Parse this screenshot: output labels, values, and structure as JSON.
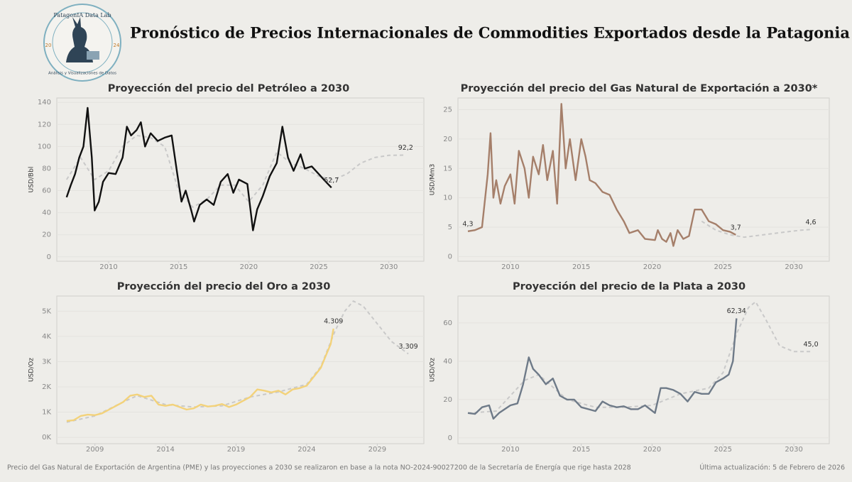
{
  "header": {
    "title": "Pronóstico de Precios Internacionales de Commodities Exportados desde la Patagonia",
    "logo_title": "PatagonIA Data Lab",
    "logo_year_left": "20",
    "logo_year_right": "24",
    "logo_subtitle": "Análisis y Visualizaciones de Datos"
  },
  "footer": {
    "note": "Precio del Gas Natural de Exportación de Argentina (PME) y las proyecciones a 2030 se realizaron en base a la nota NO-2024-90027200 de la Secretaría de Energía que rige hasta 2028",
    "updated": "Última actualización: 5 de Febrero de 2026"
  },
  "chart_data": [
    {
      "type": "line",
      "title": "Proyección del precio del Petróleo a 2030",
      "y_label": "USD/Bbl",
      "xlim": [
        2006.3,
        2032.5
      ],
      "ylim": [
        -4,
        144
      ],
      "xticks": [
        2010,
        2015,
        2020,
        2025,
        2030
      ],
      "yticks": [
        0,
        20,
        40,
        60,
        80,
        100,
        120,
        140
      ],
      "grid": true,
      "series": [
        {
          "color": "#c9c9c9",
          "dash": true,
          "x": [
            2007,
            2008,
            2009,
            2010,
            2011,
            2012,
            2013,
            2014,
            2015,
            2016,
            2017,
            2018,
            2019,
            2020,
            2021,
            2022,
            2023,
            2024,
            2025,
            2026,
            2027,
            2028,
            2029,
            2030,
            2031.2
          ],
          "values": [
            70,
            90,
            70,
            78,
            100,
            110,
            108,
            100,
            60,
            45,
            52,
            65,
            65,
            50,
            65,
            95,
            85,
            80,
            73,
            70,
            75,
            85,
            90,
            92,
            92.2
          ]
        },
        {
          "color": "#111111",
          "dash": false,
          "x": [
            2007,
            2007.3,
            2007.6,
            2007.9,
            2008.2,
            2008.5,
            2008.8,
            2009,
            2009.3,
            2009.6,
            2010,
            2010.5,
            2011,
            2011.3,
            2011.6,
            2012,
            2012.3,
            2012.6,
            2013,
            2013.5,
            2014,
            2014.5,
            2014.9,
            2015.2,
            2015.5,
            2015.9,
            2016.1,
            2016.5,
            2017,
            2017.5,
            2018,
            2018.5,
            2018.9,
            2019.3,
            2019.9,
            2020.3,
            2020.6,
            2021,
            2021.5,
            2022,
            2022.4,
            2022.8,
            2023.2,
            2023.7,
            2024,
            2024.5,
            2025,
            2025.5,
            2025.9
          ],
          "values": [
            54,
            65,
            75,
            90,
            100,
            135,
            90,
            42,
            50,
            68,
            76,
            75,
            90,
            118,
            110,
            115,
            122,
            100,
            112,
            105,
            108,
            110,
            75,
            50,
            60,
            42,
            32,
            47,
            52,
            47,
            68,
            75,
            58,
            70,
            66,
            24,
            43,
            55,
            73,
            85,
            118,
            90,
            78,
            93,
            80,
            82,
            75,
            68,
            62.7
          ]
        }
      ],
      "annotations": [
        {
          "x": 2031.2,
          "y": 92.2,
          "label": "92,2"
        },
        {
          "x": 2025.9,
          "y": 62.7,
          "label": "62,7"
        }
      ]
    },
    {
      "type": "line",
      "title": "Proyección del precio del Gas Natural de Exportación a 2030*",
      "y_label": "USD/Mm3",
      "xlim": [
        2006.3,
        2032.5
      ],
      "ylim": [
        -0.8,
        27
      ],
      "xticks": [
        2010,
        2015,
        2020,
        2025,
        2030
      ],
      "yticks": [
        0,
        5,
        10,
        15,
        20,
        25
      ],
      "grid": true,
      "series": [
        {
          "color": "#c9c9c9",
          "dash": true,
          "x": [
            2023.5,
            2024.5,
            2025.5,
            2026.5,
            2027.5,
            2028.5,
            2029.5,
            2030.5,
            2031.2
          ],
          "values": [
            6,
            4.5,
            3.7,
            3.3,
            3.6,
            3.9,
            4.2,
            4.5,
            4.6
          ]
        },
        {
          "color": "#a57f6a",
          "dash": false,
          "x": [
            2007,
            2007.5,
            2008,
            2008.4,
            2008.6,
            2008.8,
            2009,
            2009.3,
            2009.6,
            2010,
            2010.3,
            2010.6,
            2011,
            2011.3,
            2011.6,
            2012,
            2012.3,
            2012.6,
            2013,
            2013.3,
            2013.6,
            2013.9,
            2014.2,
            2014.6,
            2015,
            2015.3,
            2015.6,
            2016,
            2016.5,
            2017,
            2017.5,
            2018,
            2018.4,
            2019,
            2019.5,
            2020.2,
            2020.4,
            2020.7,
            2021,
            2021.3,
            2021.5,
            2021.8,
            2022.2,
            2022.6,
            2023,
            2023.5,
            2024,
            2024.5,
            2025,
            2025.5,
            2025.9
          ],
          "values": [
            4.3,
            4.5,
            5,
            14,
            21,
            10,
            13,
            9,
            12,
            14,
            9,
            18,
            15,
            10,
            17,
            14,
            19,
            13,
            18,
            9,
            26,
            15,
            20,
            13,
            20,
            17,
            13,
            12.5,
            11,
            10.5,
            8,
            6,
            4,
            4.5,
            3,
            2.8,
            4.5,
            3,
            2.5,
            4,
            1.8,
            4.5,
            3,
            3.5,
            8,
            8,
            6,
            5.5,
            4.5,
            4.2,
            3.7
          ]
        }
      ],
      "annotations": [
        {
          "x": 2007,
          "y": 4.3,
          "label": "4,3"
        },
        {
          "x": 2025.9,
          "y": 3.7,
          "label": "3,7"
        },
        {
          "x": 2031.2,
          "y": 4.6,
          "label": "4,6"
        }
      ]
    },
    {
      "type": "line",
      "title": "Proyección del precio del Oro a 2030",
      "y_label": "USD/Oz",
      "xlim": [
        2006.3,
        2032.3
      ],
      "ylim": [
        -250,
        5600
      ],
      "xticks": [
        2009,
        2014,
        2019,
        2024,
        2029
      ],
      "yticks": [
        {
          "value": 0,
          "label": "0K"
        },
        {
          "value": 1000,
          "label": "1K"
        },
        {
          "value": 2000,
          "label": "2K"
        },
        {
          "value": 3000,
          "label": "3K"
        },
        {
          "value": 4000,
          "label": "4K"
        },
        {
          "value": 5000,
          "label": "5K"
        }
      ],
      "grid": true,
      "series": [
        {
          "color": "#c9c9c9",
          "dash": true,
          "x": [
            2007,
            2009,
            2011,
            2012,
            2014,
            2016,
            2018,
            2020,
            2022,
            2024,
            2025,
            2026,
            2026.7,
            2027.3,
            2028,
            2029,
            2030,
            2031.2
          ],
          "values": [
            600,
            850,
            1400,
            1650,
            1300,
            1200,
            1250,
            1600,
            1800,
            2100,
            2800,
            4200,
            5000,
            5400,
            5200,
            4500,
            3800,
            3309
          ]
        },
        {
          "color": "#f3d27a",
          "dash": false,
          "x": [
            2007,
            2007.5,
            2008,
            2008.5,
            2009,
            2009.5,
            2010,
            2010.5,
            2011,
            2011.5,
            2012,
            2012.5,
            2013,
            2013.5,
            2014,
            2014.5,
            2015,
            2015.5,
            2016,
            2016.5,
            2017,
            2017.5,
            2018,
            2018.5,
            2019,
            2019.5,
            2020,
            2020.5,
            2021,
            2021.5,
            2022,
            2022.5,
            2023,
            2023.5,
            2024,
            2024.5,
            2025,
            2025.4,
            2025.7,
            2025.9
          ],
          "values": [
            650,
            680,
            850,
            900,
            880,
            950,
            1100,
            1250,
            1400,
            1650,
            1700,
            1600,
            1650,
            1300,
            1250,
            1300,
            1200,
            1100,
            1150,
            1300,
            1220,
            1250,
            1320,
            1200,
            1300,
            1450,
            1600,
            1900,
            1850,
            1780,
            1850,
            1700,
            1900,
            1950,
            2050,
            2400,
            2750,
            3300,
            3700,
            4309
          ]
        }
      ],
      "annotations": [
        {
          "x": 2025.9,
          "y": 4309,
          "label": "4.309"
        },
        {
          "x": 2031.2,
          "y": 3309,
          "label": "3.309"
        }
      ]
    },
    {
      "type": "line",
      "title": "Proyección del precio de la Plata a 2030",
      "y_label": "USD/Oz",
      "xlim": [
        2006.3,
        2032.5
      ],
      "ylim": [
        -3,
        74
      ],
      "xticks": [
        2010,
        2015,
        2020,
        2025,
        2030
      ],
      "yticks": [
        0,
        20,
        40,
        60
      ],
      "grid": true,
      "series": [
        {
          "color": "#c9c9c9",
          "dash": true,
          "x": [
            2007,
            2009,
            2011,
            2012,
            2014,
            2016,
            2018,
            2020,
            2022,
            2024,
            2025,
            2026,
            2026.8,
            2027.3,
            2028,
            2029,
            2030,
            2031.2
          ],
          "values": [
            13,
            14,
            30,
            33,
            20,
            16,
            16,
            17,
            23,
            26,
            34,
            55,
            68,
            71,
            62,
            48,
            45,
            45.0
          ]
        },
        {
          "color": "#6e7a88",
          "dash": false,
          "x": [
            2007,
            2007.5,
            2008,
            2008.5,
            2008.8,
            2009.2,
            2009.6,
            2010,
            2010.5,
            2010.9,
            2011.3,
            2011.6,
            2012,
            2012.5,
            2013,
            2013.5,
            2014,
            2014.5,
            2015,
            2015.5,
            2016,
            2016.5,
            2017,
            2017.5,
            2018,
            2018.5,
            2019,
            2019.5,
            2020.2,
            2020.6,
            2021,
            2021.5,
            2022,
            2022.5,
            2023,
            2023.5,
            2024,
            2024.5,
            2025,
            2025.4,
            2025.7,
            2025.95
          ],
          "values": [
            13,
            12.5,
            16,
            17,
            10,
            13,
            15,
            17,
            18,
            28,
            42,
            36,
            33,
            28,
            31,
            22,
            20,
            20,
            16,
            15,
            14,
            19,
            17,
            16,
            16.5,
            15,
            15,
            17,
            13,
            26,
            26,
            25,
            23,
            19,
            24,
            23,
            23,
            29,
            31,
            33,
            40,
            62.34
          ]
        }
      ],
      "annotations": [
        {
          "x": 2025.95,
          "y": 62.34,
          "label": "62,34"
        },
        {
          "x": 2031.2,
          "y": 45.0,
          "label": "45,0"
        }
      ]
    }
  ]
}
